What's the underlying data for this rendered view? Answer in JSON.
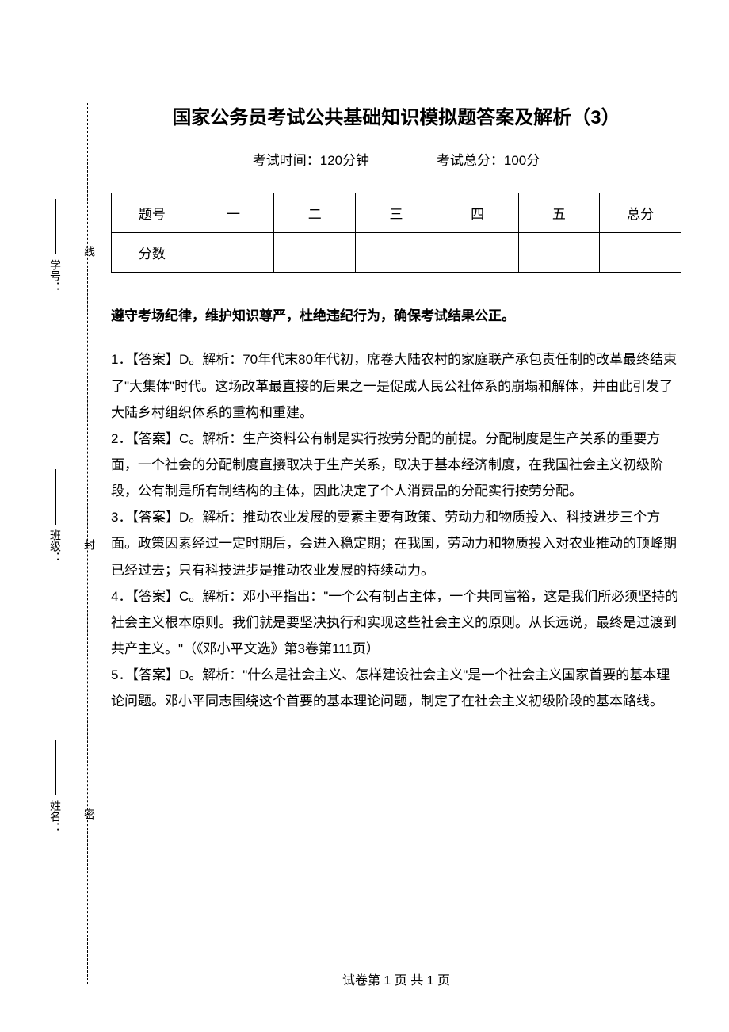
{
  "title": "国家公务员考试公共基础知识模拟题答案及解析（3）",
  "exam_info": {
    "duration_label": "考试时间：120分钟",
    "total_score_label": "考试总分：100分"
  },
  "score_table": {
    "headers": [
      "题号",
      "一",
      "二",
      "三",
      "四",
      "五",
      "总分"
    ],
    "score_label": "分数"
  },
  "integrity_notice": "遵守考场纪律，维护知识尊严，杜绝违纪行为，确保考试结果公正。",
  "answers": [
    "1．【答案】D。解析：70年代末80年代初，席卷大陆农村的家庭联产承包责任制的改革最终结束了\"大集体\"时代。这场改革最直接的后果之一是促成人民公社体系的崩塌和解体，并由此引发了大陆乡村组织体系的重构和重建。",
    "2．【答案】C。解析：生产资料公有制是实行按劳分配的前提。分配制度是生产关系的重要方面，一个社会的分配制度直接取决于生产关系，取决于基本经济制度，在我国社会主义初级阶段，公有制是所有制结构的主体，因此决定了个人消费品的分配实行按劳分配。",
    "3．【答案】D。解析：推动农业发展的要素主要有政策、劳动力和物质投入、科技进步三个方面。政策因素经过一定时期后，会进入稳定期；在我国，劳动力和物质投入对农业推动的顶峰期已经过去；只有科技进步是推动农业发展的持续动力。",
    "4．【答案】C。解析：邓小平指出：\"一个公有制占主体，一个共同富裕，这是我们所必须坚持的社会主义根本原则。我们就是要坚决执行和实现这些社会主义的原则。从长远说，最终是过渡到共产主义。\"（《邓小平文选》第3卷第111页）",
    "5．【答案】D。解析：\"什么是社会主义、怎样建设社会主义\"是一个社会主义国家首要的基本理论问题。邓小平同志围绕这个首要的基本理论问题，制定了在社会主义初级阶段的基本路线。"
  ],
  "footer": "试卷第 1 页 共 1 页",
  "binding_labels": {
    "name": "姓名：",
    "class": "班级：",
    "student_id": "学号："
  },
  "binding_markers": {
    "top": "线",
    "mid": "封",
    "bot": "密"
  },
  "colors": {
    "text": "#000000",
    "background": "#ffffff",
    "border": "#000000"
  }
}
